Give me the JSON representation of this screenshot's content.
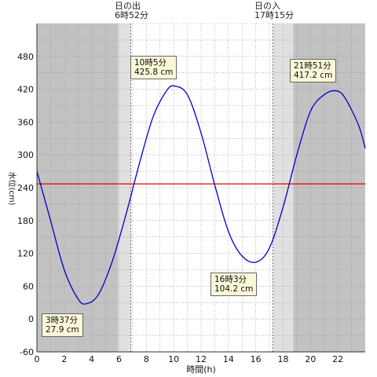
{
  "chart_data": {
    "type": "line",
    "xlabel": "時間(h)",
    "ylabel": "水位(cm)",
    "xlim": [
      0,
      24
    ],
    "ylim": [
      -60,
      540
    ],
    "x_ticks": [
      0,
      2,
      4,
      6,
      8,
      10,
      12,
      14,
      16,
      18,
      20,
      22
    ],
    "y_ticks": [
      -60,
      0,
      60,
      120,
      180,
      240,
      300,
      360,
      420,
      480
    ],
    "grid": true,
    "reference_line": {
      "y": 247,
      "color": "#e00000"
    },
    "sunrise": {
      "label": "日の出",
      "time": "6時52分",
      "hour": 6.87
    },
    "sunset": {
      "label": "日の入",
      "time": "17時15分",
      "hour": 17.25
    },
    "series": [
      {
        "color": "#0000cc",
        "x": [
          0,
          1,
          2,
          3,
          3.62,
          4.5,
          5.5,
          6.5,
          7.5,
          8.5,
          9.5,
          10.08,
          11,
          12,
          13,
          14,
          15,
          16.05,
          17,
          18,
          19,
          20,
          21,
          21.85,
          22.5,
          23.5,
          24
        ],
        "y": [
          270,
          180,
          90,
          37,
          27.9,
          45,
          105,
          190,
          285,
          370,
          418,
          425.8,
          410,
          340,
          245,
          160,
          115,
          104.2,
          130,
          205,
          300,
          380,
          410,
          417.2,
          405,
          355,
          312
        ]
      }
    ],
    "annotations": [
      {
        "time": "3時37分",
        "value": "27.9 cm"
      },
      {
        "time": "10時5分",
        "value": "425.8 cm"
      },
      {
        "time": "16時3分",
        "value": "104.2 cm"
      },
      {
        "time": "21時51分",
        "value": "417.2 cm"
      }
    ],
    "colors": {
      "night": "#c2c2c2",
      "twilight": "#e0e0e0",
      "day": "#ffffff",
      "series": "#0000cc",
      "reference": "#e00000"
    }
  }
}
